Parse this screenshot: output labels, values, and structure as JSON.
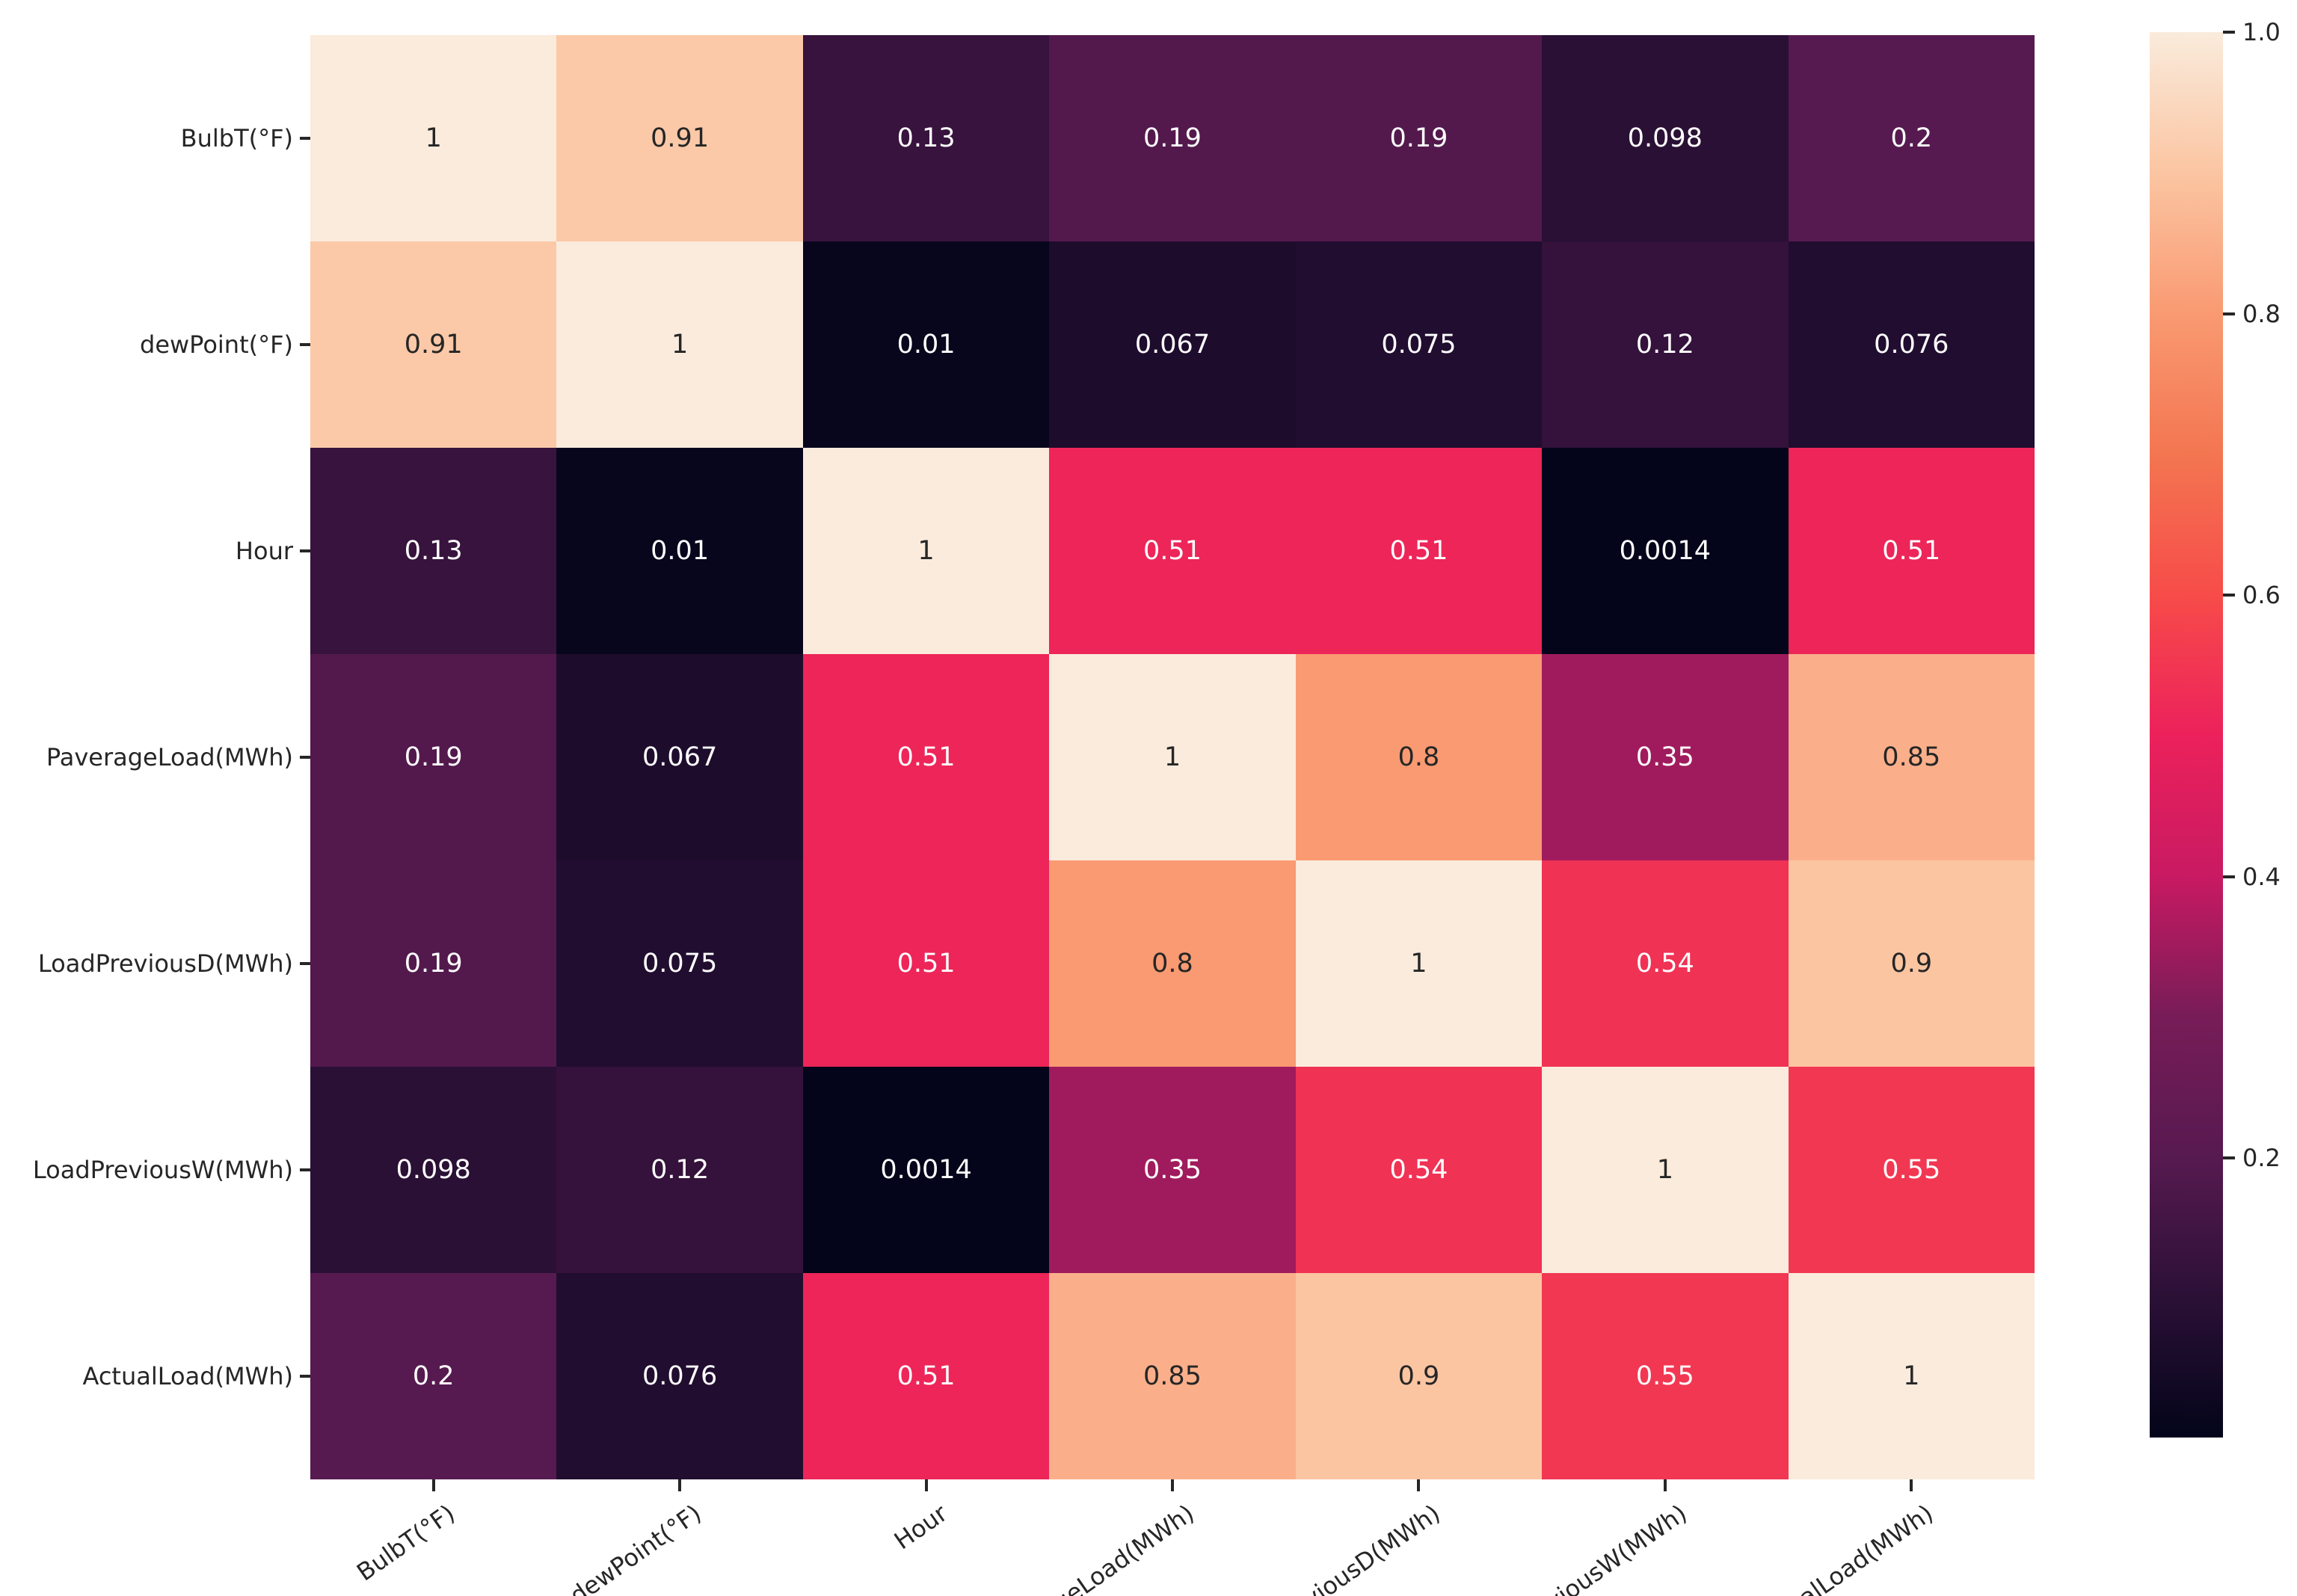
{
  "figure": {
    "background": "#ffffff"
  },
  "chart_data": {
    "type": "heatmap",
    "title": "",
    "variables": [
      "BulbT(°F)",
      "dewPoint(°F)",
      "Hour",
      "PaverageLoad(MWh)",
      "LoadPreviousD(MWh)",
      "LoadPreviousW(MWh)",
      "ActualLoad(MWh)"
    ],
    "matrix": [
      [
        1,
        0.91,
        0.13,
        0.19,
        0.19,
        0.098,
        0.2
      ],
      [
        0.91,
        1,
        0.01,
        0.067,
        0.075,
        0.12,
        0.076
      ],
      [
        0.13,
        0.01,
        1,
        0.51,
        0.51,
        0.0014,
        0.51
      ],
      [
        0.19,
        0.067,
        0.51,
        1,
        0.8,
        0.35,
        0.85
      ],
      [
        0.19,
        0.075,
        0.51,
        0.8,
        1,
        0.54,
        0.9
      ],
      [
        0.098,
        0.12,
        0.0014,
        0.35,
        0.54,
        1,
        0.55
      ],
      [
        0.2,
        0.076,
        0.51,
        0.85,
        0.9,
        0.55,
        1
      ]
    ],
    "vmin": 0.0014,
    "vmax": 1.0,
    "grid": false,
    "legend_position": "right",
    "colormap": {
      "name": "rocket",
      "stops": [
        [
          0.0,
          "#03051A"
        ],
        [
          0.1,
          "#2B1036"
        ],
        [
          0.2,
          "#571A50"
        ],
        [
          0.3,
          "#781C58"
        ],
        [
          0.4,
          "#C91A62"
        ],
        [
          0.5,
          "#EC215B"
        ],
        [
          0.6,
          "#F74C49"
        ],
        [
          0.7,
          "#F37651"
        ],
        [
          0.8,
          "#F99A72"
        ],
        [
          0.9,
          "#FBC5A2"
        ],
        [
          1.0,
          "#FAEBDC"
        ]
      ]
    },
    "colorbar": {
      "tick_labels": [
        "1.0",
        "0.8",
        "0.6",
        "0.4",
        "0.2"
      ],
      "tick_values": [
        1.0,
        0.8,
        0.6,
        0.4,
        0.2
      ]
    },
    "annotation_colors": {
      "on_dark": "#ffffff",
      "on_light": "#262626"
    },
    "axis_text_color": "#262626"
  }
}
